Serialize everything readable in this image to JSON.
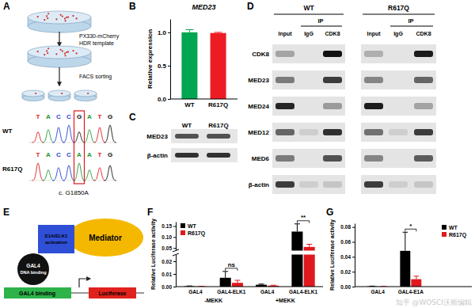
{
  "panel_labels": [
    "A",
    "B",
    "C",
    "D",
    "E",
    "F",
    "G"
  ],
  "panel_a": {
    "steps": [
      "PX330-mCherry",
      "HDR template",
      "FACS sorting"
    ],
    "sequences": [
      {
        "name": "WT",
        "bases": [
          "T",
          "A",
          "C",
          "C",
          "G",
          "A",
          "T",
          "G"
        ]
      },
      {
        "name": "R617Q",
        "bases": [
          "T",
          "A",
          "C",
          "C",
          "A",
          "A",
          "T",
          "G"
        ]
      }
    ],
    "mutation": "c. G1850A"
  },
  "panel_c": {
    "columns": [
      "WT",
      "R617Q"
    ],
    "rows": [
      "MED23",
      "β-actin"
    ],
    "band_intensity": [
      [
        0.7,
        0.7
      ],
      [
        0.85,
        0.85
      ]
    ]
  },
  "panel_d": {
    "groups": [
      "WT",
      "R617Q"
    ],
    "ip_label": "IP",
    "lanes": [
      "Input",
      "IgG",
      "CDK8"
    ],
    "rows": [
      "CDK8",
      "MED23",
      "MED24",
      "MED12",
      "MED6",
      "β-actin"
    ],
    "band_intensity": [
      [
        0.3,
        0.0,
        1.0,
        0.25,
        0.0,
        0.95
      ],
      [
        0.5,
        0.0,
        0.8,
        0.45,
        0.0,
        0.6
      ],
      [
        0.9,
        0.0,
        0.35,
        0.95,
        0.0,
        0.3
      ],
      [
        0.6,
        0.1,
        0.85,
        0.55,
        0.1,
        0.8
      ],
      [
        0.5,
        0.0,
        0.7,
        0.45,
        0.0,
        0.65
      ],
      [
        0.8,
        0.1,
        0.15,
        0.8,
        0.1,
        0.15
      ]
    ]
  },
  "panel_e": {
    "mediator": "Mediator",
    "activation": [
      "E1A/ELK1",
      "activation"
    ],
    "dna_binding": [
      "GAL4",
      "DNA binding"
    ],
    "binding_site": "GAL4 binding",
    "reporter": "Luciferase"
  },
  "watermark": "知乎 @WOSCI沃斯编辑",
  "chart_data": [
    {
      "type": "bar",
      "title": "MED23",
      "y_label": "Relative expression",
      "categories": [
        "WT",
        "R617Q"
      ],
      "values": [
        1.0,
        0.99
      ],
      "errors": [
        0.04,
        0.01
      ],
      "colors": [
        "#00a651",
        "#ed1c24"
      ],
      "ylim": [
        0,
        1.2
      ],
      "yticks": [
        {
          "value": 0,
          "label": "0.0"
        },
        {
          "value": 0.5,
          "label": "0.5"
        },
        {
          "value": 1,
          "label": "1.0"
        }
      ]
    },
    {
      "type": "bar",
      "y_label": "Relative Luciferase activity",
      "categories": [
        "GAL4",
        "GAL4-ELK1",
        "GAL4",
        "GAL4-ELK1"
      ],
      "groups": [
        "-MEKK",
        "+MEKK"
      ],
      "series": [
        {
          "name": "WT",
          "color": "#000000",
          "values": [
            0.0003,
            0.007,
            0.0015,
            0.125
          ],
          "errors": [
            0.0002,
            0.005,
            0.0005,
            0.035
          ]
        },
        {
          "name": "R617Q",
          "color": "#e0191e",
          "values": [
            0.0002,
            0.003,
            0.0008,
            0.055
          ],
          "errors": [
            0.0001,
            0.002,
            0.0003,
            0.012
          ]
        }
      ],
      "ylim": [
        0,
        0.17
      ],
      "y_break": [
        0.025,
        0.04
      ],
      "yticks": [
        {
          "value": 0,
          "label": "0.00"
        },
        {
          "value": 0.01,
          "label": "0.01"
        },
        {
          "value": 0.02,
          "label": "0.02"
        },
        {
          "value": 0.05,
          "label": "0.05"
        },
        {
          "value": 0.1,
          "label": "0.10"
        },
        {
          "value": 0.15,
          "label": "0.15"
        }
      ],
      "annotations": [
        {
          "text": "ns",
          "category": 1
        },
        {
          "text": "**",
          "category": 3
        }
      ],
      "legend": "top-left"
    },
    {
      "type": "bar",
      "y_label": "Relative Luciferase activity",
      "categories": [
        "GAL4",
        "GAL4-E1A"
      ],
      "series": [
        {
          "name": "WT",
          "color": "#000000",
          "values": [
            0.0005,
            0.048
          ],
          "errors": [
            0.0002,
            0.025
          ]
        },
        {
          "name": "R617Q",
          "color": "#e0191e",
          "values": [
            0.0003,
            0.01
          ],
          "errors": [
            0.0001,
            0.004
          ]
        }
      ],
      "ylim": [
        0,
        0.085
      ],
      "yticks": [
        {
          "value": 0,
          "label": "0.00"
        },
        {
          "value": 0.02,
          "label": "0.02"
        },
        {
          "value": 0.04,
          "label": "0.04"
        },
        {
          "value": 0.06,
          "label": "0.06"
        },
        {
          "value": 0.08,
          "label": "0.08"
        }
      ],
      "annotations": [
        {
          "text": "*",
          "category": 1
        }
      ],
      "legend": "top-right"
    }
  ]
}
